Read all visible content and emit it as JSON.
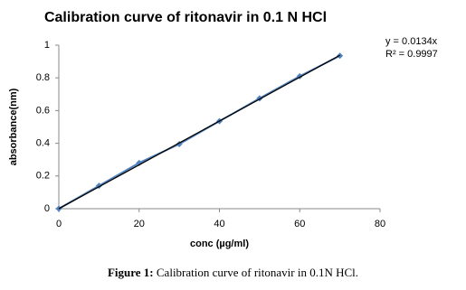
{
  "chart_data": {
    "type": "scatter",
    "title": "Calibration curve of ritonavir in 0.1 N HCl",
    "x_label": "conc (µg/ml)",
    "y_label": "absorbance(nm)",
    "series": [
      {
        "name": "absorbance",
        "color": "#4f81bd",
        "x": [
          0,
          10,
          20,
          30,
          40,
          50,
          60,
          70
        ],
        "values": [
          0,
          0.14,
          0.28,
          0.395,
          0.535,
          0.675,
          0.81,
          0.935
        ]
      }
    ],
    "trendline": {
      "slope": 0.0134,
      "color": "#000000"
    },
    "annotations": [
      "y = 0.0134x",
      "R² = 0.9997"
    ],
    "xlim": [
      0,
      80
    ],
    "xticks": [
      0,
      20,
      40,
      60,
      80
    ],
    "ylim": [
      0,
      1
    ],
    "yticks": [
      0,
      0.2,
      0.4,
      0.6,
      0.8,
      1
    ],
    "grid": false
  },
  "caption": {
    "label": "Figure 1:",
    "text": "Calibration curve of ritonavir in 0.1N HCl."
  }
}
